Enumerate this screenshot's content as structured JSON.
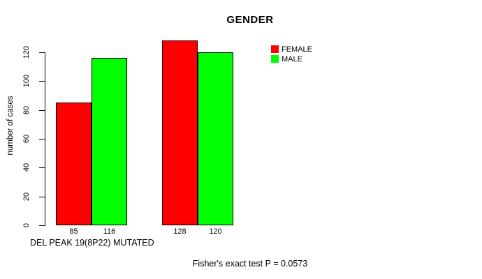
{
  "chart_data": {
    "type": "bar",
    "title": "GENDER",
    "ylabel": "number of cases",
    "xlabel": "",
    "x_annotation": "DEL PEAK 19(8P22) MUTATED",
    "footer": "Fisher's exact test P = 0.0573",
    "series": [
      {
        "name": "FEMALE",
        "color": "#ff0000",
        "values": [
          85,
          128
        ]
      },
      {
        "name": "MALE",
        "color": "#00ff00",
        "values": [
          116,
          120
        ]
      }
    ],
    "bar_value_labels": [
      "85",
      "116",
      "128",
      "120"
    ],
    "yticks": [
      0,
      20,
      40,
      60,
      80,
      100,
      120
    ],
    "ylim": [
      0,
      130
    ],
    "grid": false,
    "legend": {
      "position": "top-right",
      "entries": [
        "FEMALE",
        "MALE"
      ]
    }
  }
}
